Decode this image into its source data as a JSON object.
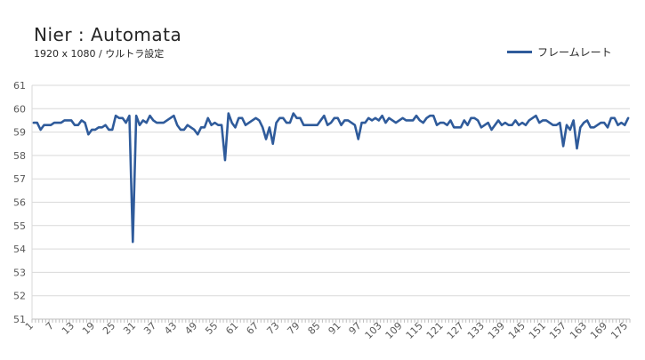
{
  "chart_data": {
    "type": "line",
    "title": "Nier : Automata",
    "subtitle": "1920 x 1080 /  ウルトラ設定",
    "ylim": [
      51,
      61
    ],
    "yticks": [
      51,
      52,
      53,
      54,
      55,
      56,
      57,
      58,
      59,
      60,
      61
    ],
    "xtick_labels": [
      "1",
      "7",
      "13",
      "19",
      "25",
      "31",
      "37",
      "43",
      "49",
      "55",
      "61",
      "67",
      "73",
      "79",
      "85",
      "91",
      "97",
      "103",
      "109",
      "115",
      "121",
      "127",
      "133",
      "139",
      "145",
      "151",
      "157",
      "163",
      "169",
      "175"
    ],
    "grid": true,
    "legend_position": "top-right",
    "series": [
      {
        "name": "フレームレート",
        "color": "#2F5B9B",
        "values": [
          59.4,
          59.4,
          59.1,
          59.3,
          59.3,
          59.3,
          59.4,
          59.4,
          59.4,
          59.5,
          59.5,
          59.5,
          59.3,
          59.3,
          59.5,
          59.4,
          58.9,
          59.1,
          59.1,
          59.2,
          59.2,
          59.3,
          59.1,
          59.1,
          59.7,
          59.6,
          59.6,
          59.4,
          59.7,
          54.3,
          59.7,
          59.3,
          59.5,
          59.4,
          59.7,
          59.5,
          59.4,
          59.4,
          59.4,
          59.5,
          59.6,
          59.7,
          59.3,
          59.1,
          59.1,
          59.3,
          59.2,
          59.1,
          58.9,
          59.2,
          59.2,
          59.6,
          59.3,
          59.4,
          59.3,
          59.3,
          57.8,
          59.8,
          59.4,
          59.2,
          59.6,
          59.6,
          59.3,
          59.4,
          59.5,
          59.6,
          59.5,
          59.2,
          58.7,
          59.2,
          58.5,
          59.4,
          59.6,
          59.6,
          59.4,
          59.4,
          59.8,
          59.6,
          59.6,
          59.3,
          59.3,
          59.3,
          59.3,
          59.3,
          59.5,
          59.7,
          59.3,
          59.4,
          59.6,
          59.6,
          59.3,
          59.5,
          59.5,
          59.4,
          59.3,
          58.7,
          59.4,
          59.4,
          59.6,
          59.5,
          59.6,
          59.5,
          59.7,
          59.4,
          59.6,
          59.5,
          59.4,
          59.5,
          59.6,
          59.5,
          59.5,
          59.5,
          59.7,
          59.5,
          59.4,
          59.6,
          59.7,
          59.7,
          59.3,
          59.4,
          59.4,
          59.3,
          59.5,
          59.2,
          59.2,
          59.2,
          59.5,
          59.3,
          59.6,
          59.6,
          59.5,
          59.2,
          59.3,
          59.4,
          59.1,
          59.3,
          59.5,
          59.3,
          59.4,
          59.3,
          59.3,
          59.5,
          59.3,
          59.4,
          59.3,
          59.5,
          59.6,
          59.7,
          59.4,
          59.5,
          59.5,
          59.4,
          59.3,
          59.3,
          59.4,
          58.4,
          59.3,
          59.1,
          59.5,
          58.3,
          59.2,
          59.4,
          59.5,
          59.2,
          59.2,
          59.3,
          59.4,
          59.4,
          59.2,
          59.6,
          59.6,
          59.3,
          59.4,
          59.3,
          59.6
        ]
      }
    ]
  }
}
